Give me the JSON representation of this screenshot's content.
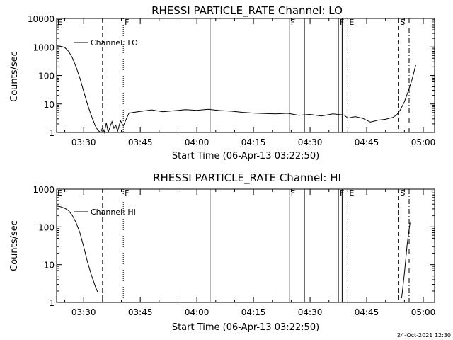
{
  "footer_timestamp": "24-Oct-2021 12:30",
  "chart_data": [
    {
      "type": "line",
      "title": "RHESSI PARTICLE_RATE Channel: LO",
      "xlabel": "Start Time (06-Apr-13 03:22:50)",
      "ylabel": "Counts/sec",
      "y_scale": "log",
      "xlim": [
        "03:22:50",
        "05:03:00"
      ],
      "ylim": [
        1,
        10000
      ],
      "y_ticks": [
        "1",
        "10",
        "100",
        "1000",
        "10000"
      ],
      "x_ticks": [
        "03:30",
        "03:45",
        "04:00",
        "04:15",
        "04:30",
        "04:45",
        "05:00"
      ],
      "legend": "top-left",
      "series": [
        {
          "name": "Channel: LO",
          "x": [
            "03:22:50",
            "03:24:00",
            "03:25:00",
            "03:26:00",
            "03:27:00",
            "03:28:00",
            "03:29:00",
            "03:30:00",
            "03:31:00",
            "03:32:00",
            "03:33:00",
            "03:33:45",
            "03:34:30",
            "03:35:00",
            "03:35:30",
            "03:36:00",
            "03:36:30",
            "03:37:00",
            "03:37:30",
            "03:38:00",
            "03:38:30",
            "03:39:00",
            "03:39:45",
            "03:40:30",
            "03:42:00",
            "03:45:00",
            "03:48:00",
            "03:51:00",
            "03:54:00",
            "03:57:00",
            "04:00:00",
            "04:03:00",
            "04:06:00",
            "04:09:00",
            "04:12:00",
            "04:15:00",
            "04:18:00",
            "04:21:00",
            "04:24:00",
            "04:27:00",
            "04:30:00",
            "04:33:00",
            "04:36:00",
            "04:39:00",
            "04:40:00",
            "04:42:00",
            "04:44:00",
            "04:46:00",
            "04:48:00",
            "04:50:00",
            "04:52:00",
            "04:53:00",
            "04:54:00",
            "04:55:00",
            "04:56:00",
            "04:57:00",
            "04:58:00"
          ],
          "values": [
            1100,
            1050,
            950,
            700,
            420,
            200,
            80,
            28,
            10,
            4,
            1.8,
            1.2,
            0.9,
            1.5,
            1.0,
            2.2,
            1.0,
            1.6,
            2.4,
            1.4,
            1.8,
            1.1,
            2.6,
            1.7,
            4.8,
            5.5,
            6.2,
            5.3,
            5.8,
            6.3,
            6.0,
            6.5,
            5.9,
            5.6,
            5.1,
            4.8,
            4.6,
            4.5,
            4.7,
            4.0,
            4.3,
            3.8,
            4.5,
            4.1,
            3.2,
            3.6,
            3.1,
            2.3,
            2.7,
            2.9,
            3.4,
            4.2,
            6.5,
            12,
            28,
            70,
            230
          ]
        }
      ],
      "markers": [
        {
          "time": "03:22:50",
          "style": "solid",
          "label": "E"
        },
        {
          "time": "03:35:00",
          "style": "dashed",
          "label": ""
        },
        {
          "time": "03:40:30",
          "style": "dotted",
          "label": "F"
        },
        {
          "time": "04:03:30",
          "style": "solid",
          "label": ""
        },
        {
          "time": "04:24:30",
          "style": "solid",
          "label": "F"
        },
        {
          "time": "04:28:30",
          "style": "solid",
          "label": ""
        },
        {
          "time": "04:37:30",
          "style": "solid",
          "label": "F"
        },
        {
          "time": "04:38:30",
          "style": "solid",
          "label": ""
        },
        {
          "time": "04:40:00",
          "style": "dotted",
          "label": "E"
        },
        {
          "time": "04:53:30",
          "style": "dashed",
          "label": "S"
        },
        {
          "time": "04:56:15",
          "style": "dashdot",
          "label": ""
        }
      ]
    },
    {
      "type": "line",
      "title": "RHESSI PARTICLE_RATE Channel: HI",
      "xlabel": "Start Time (06-Apr-13 03:22:50)",
      "ylabel": "Counts/sec",
      "y_scale": "log",
      "xlim": [
        "03:22:50",
        "05:03:00"
      ],
      "ylim": [
        1,
        1000
      ],
      "y_ticks": [
        "1",
        "10",
        "100",
        "1000"
      ],
      "x_ticks": [
        "03:30",
        "03:45",
        "04:00",
        "04:15",
        "04:30",
        "04:45",
        "05:00"
      ],
      "legend": "top-left",
      "series": [
        {
          "name": "Channel: HI",
          "x": [
            "03:22:50",
            "03:24:00",
            "03:25:00",
            "03:26:00",
            "03:27:00",
            "03:28:00",
            "03:29:00",
            "03:30:00",
            "03:31:00",
            "03:32:00",
            "03:33:00",
            "03:33:40"
          ],
          "values": [
            360,
            340,
            310,
            270,
            200,
            130,
            70,
            30,
            12,
            5.5,
            2.8,
            1.9
          ]
        },
        {
          "name": "",
          "x": [
            "04:54:15",
            "04:55:00",
            "04:55:45",
            "04:56:30"
          ],
          "values": [
            1.3,
            6,
            35,
            130
          ]
        }
      ],
      "markers": [
        {
          "time": "03:22:50",
          "style": "solid",
          "label": "E"
        },
        {
          "time": "03:35:00",
          "style": "dashed",
          "label": ""
        },
        {
          "time": "03:40:30",
          "style": "dotted",
          "label": "F"
        },
        {
          "time": "04:03:30",
          "style": "solid",
          "label": ""
        },
        {
          "time": "04:24:30",
          "style": "solid",
          "label": "F"
        },
        {
          "time": "04:28:30",
          "style": "solid",
          "label": ""
        },
        {
          "time": "04:37:30",
          "style": "solid",
          "label": "F"
        },
        {
          "time": "04:38:30",
          "style": "solid",
          "label": ""
        },
        {
          "time": "04:40:00",
          "style": "dotted",
          "label": "E"
        },
        {
          "time": "04:53:30",
          "style": "dashed",
          "label": "S"
        },
        {
          "time": "04:56:15",
          "style": "dashdot",
          "label": ""
        }
      ]
    }
  ]
}
